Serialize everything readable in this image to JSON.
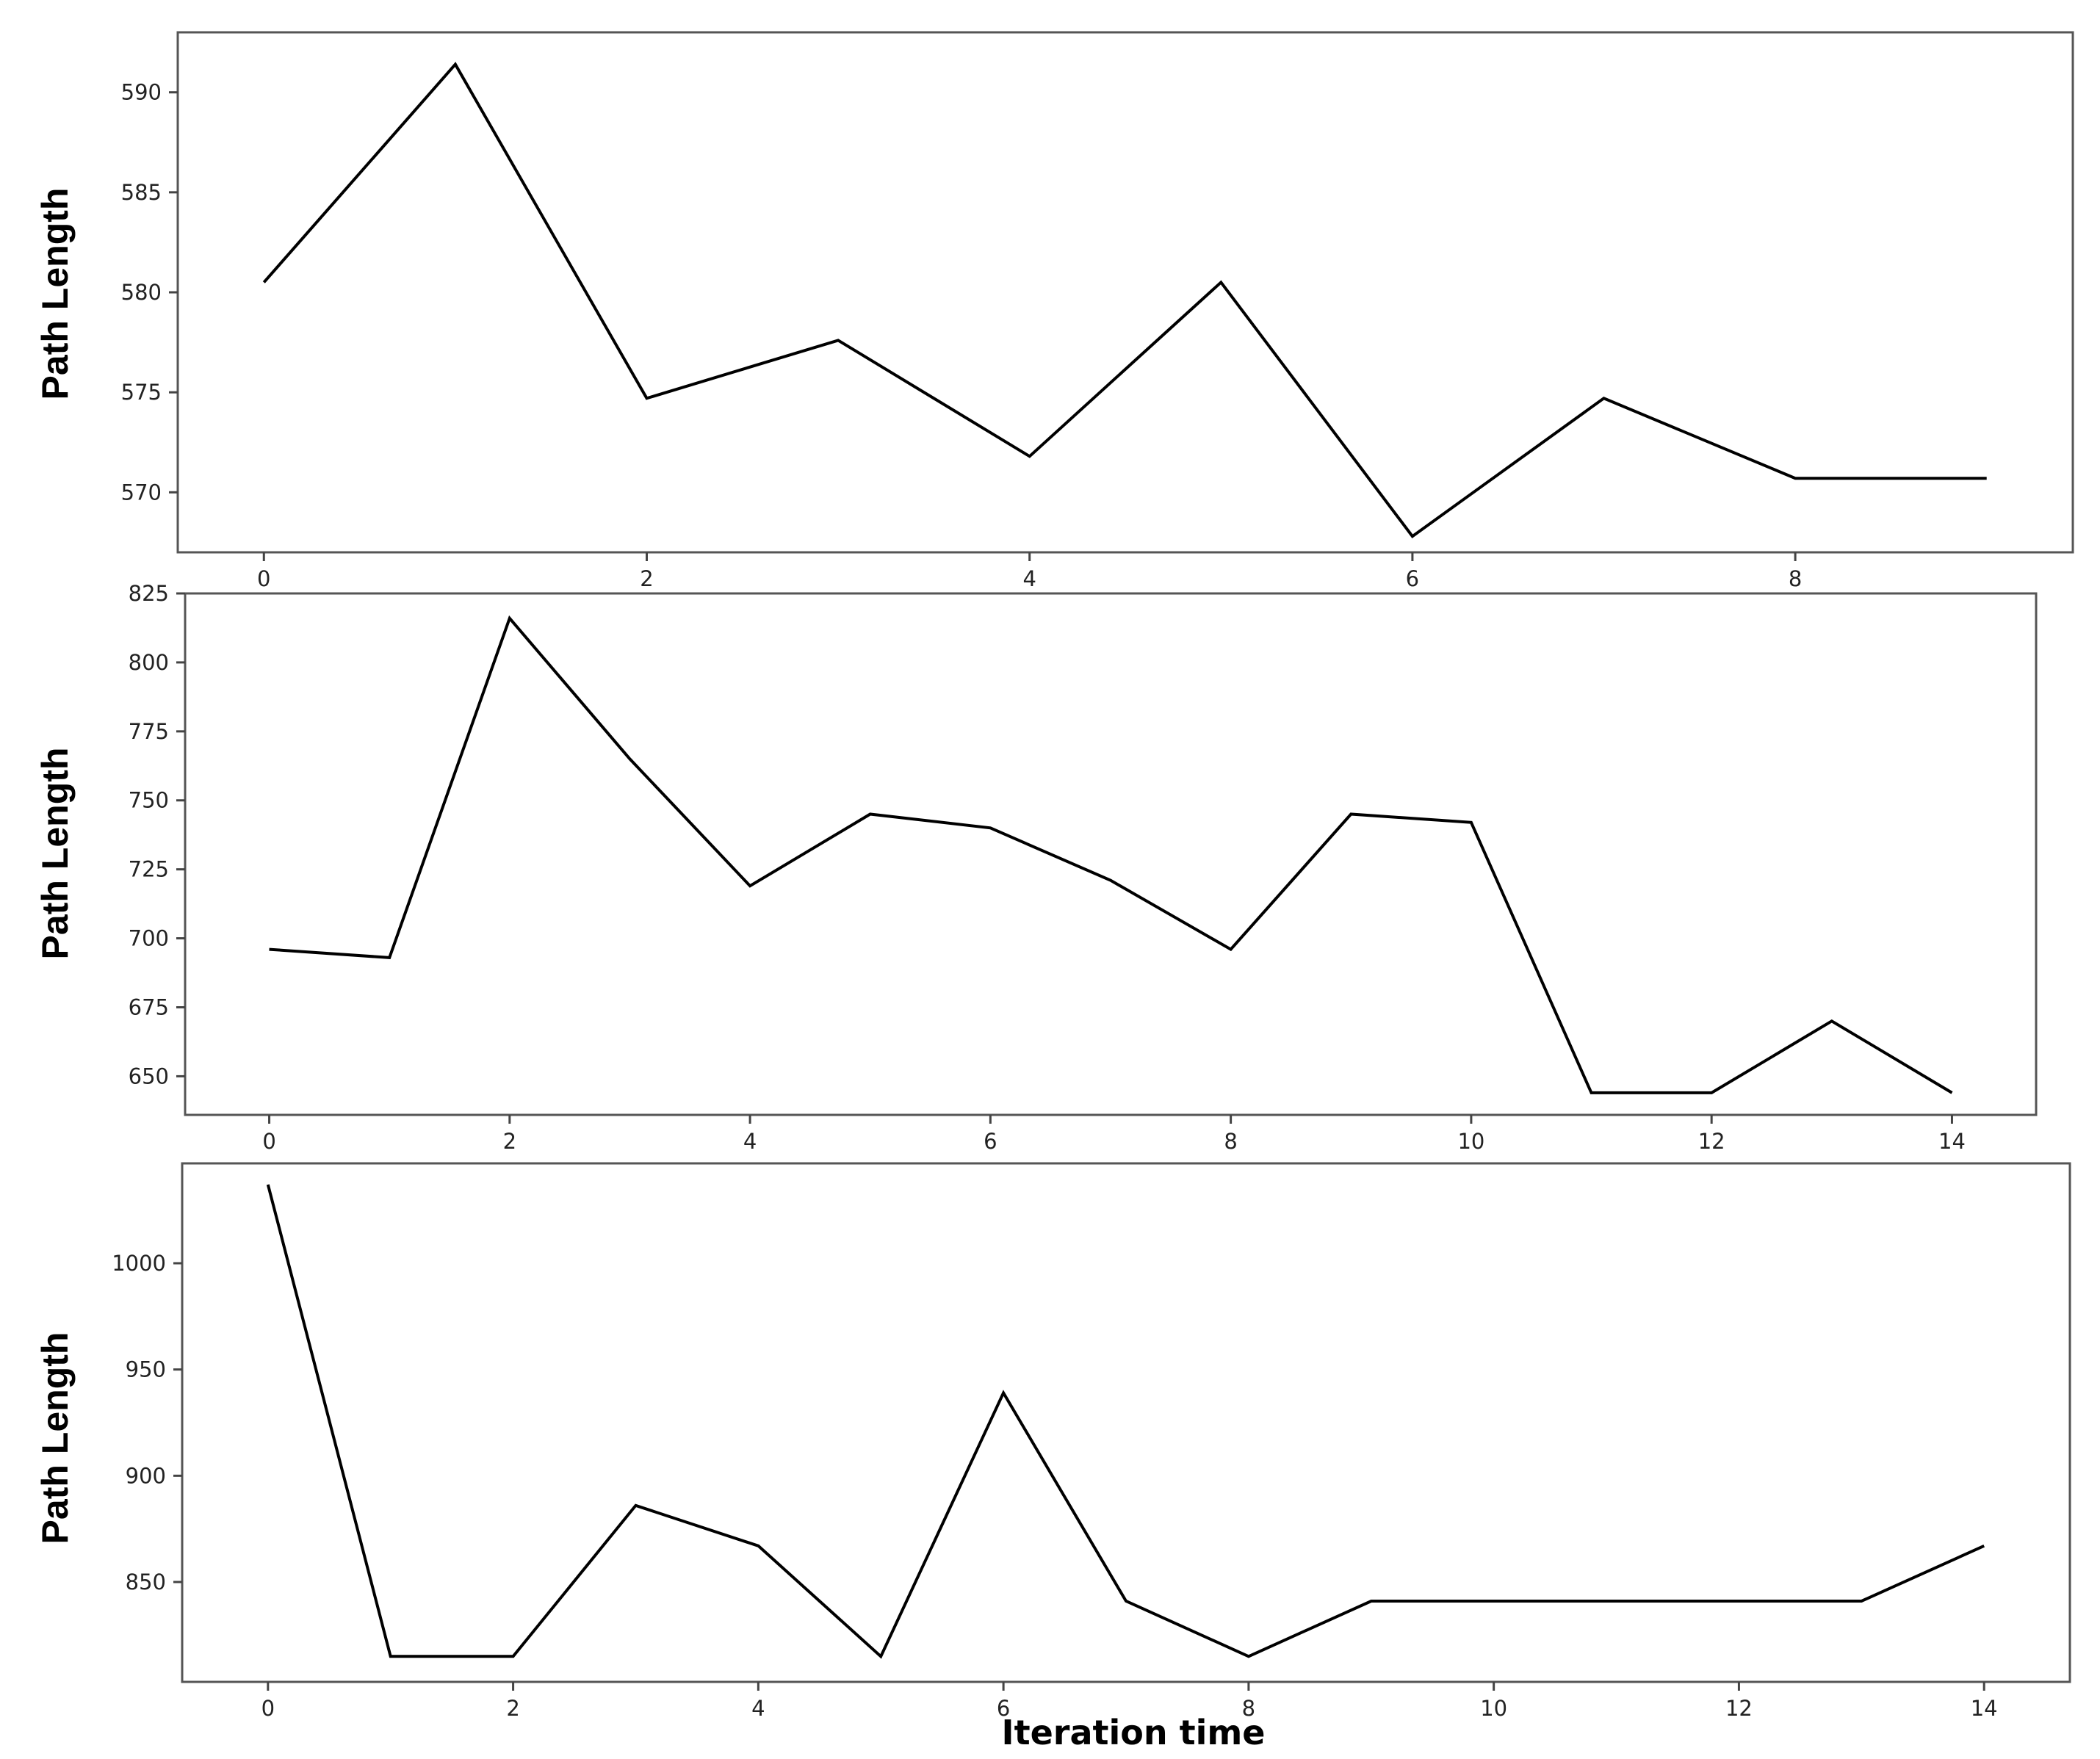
{
  "chart_data": [
    {
      "type": "line",
      "title": "",
      "xlabel": "",
      "ylabel": "Path Length",
      "xlim": [
        -0.45,
        9.45
      ],
      "ylim": [
        567,
        593
      ],
      "xticks": [
        0,
        2,
        4,
        6,
        8
      ],
      "yticks": [
        570,
        575,
        580,
        585,
        590
      ],
      "grid": false,
      "legend": "none",
      "x": [
        0,
        1,
        2,
        3,
        4,
        5,
        6,
        7,
        8,
        9
      ],
      "series": [
        {
          "values": [
            580.5,
            591.4,
            574.7,
            577.6,
            571.8,
            580.5,
            567.8,
            574.7,
            570.7,
            570.7
          ]
        }
      ]
    },
    {
      "type": "line",
      "title": "",
      "xlabel": "",
      "ylabel": "Path Length",
      "xlim": [
        -0.7,
        14.7
      ],
      "ylim": [
        636,
        825
      ],
      "xticks": [
        0,
        2,
        4,
        6,
        8,
        10,
        12,
        14
      ],
      "yticks": [
        650,
        675,
        700,
        725,
        750,
        775,
        800,
        825
      ],
      "grid": false,
      "legend": "none",
      "x": [
        0,
        1,
        2,
        3,
        4,
        5,
        6,
        7,
        8,
        9,
        10,
        11,
        12,
        13,
        14
      ],
      "series": [
        {
          "values": [
            696,
            693,
            816,
            765,
            719,
            745,
            740,
            721,
            696,
            745,
            742,
            644,
            644,
            670,
            644
          ]
        }
      ]
    },
    {
      "type": "line",
      "title": "",
      "xlabel": "Iteration time",
      "ylabel": "Path Length",
      "xlim": [
        -0.7,
        14.7
      ],
      "ylim": [
        803,
        1047
      ],
      "xticks": [
        0,
        2,
        4,
        6,
        8,
        10,
        12,
        14
      ],
      "yticks": [
        850,
        900,
        950,
        1000
      ],
      "grid": false,
      "legend": "none",
      "x": [
        0,
        1,
        2,
        3,
        4,
        5,
        6,
        7,
        8,
        9,
        10,
        11,
        12,
        13,
        14
      ],
      "series": [
        {
          "values": [
            1037,
            815,
            815,
            886,
            867,
            815,
            939,
            841,
            815,
            841,
            841,
            841,
            841,
            841,
            867
          ]
        }
      ]
    }
  ]
}
